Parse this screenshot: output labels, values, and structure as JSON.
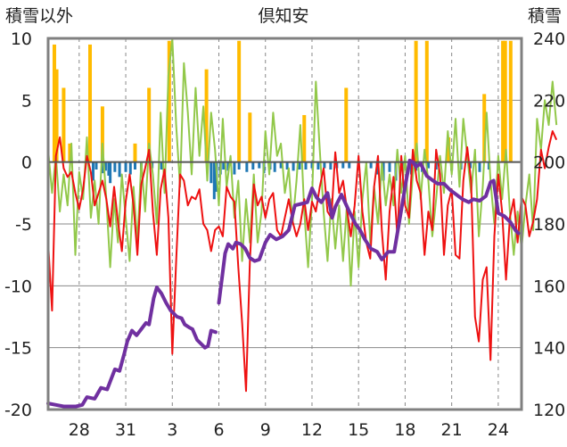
{
  "chart_data": {
    "type": "line",
    "title": "倶知安",
    "left_axis_label": "積雪以外",
    "right_axis_label": "積雪",
    "left_ylim": [
      -20,
      10
    ],
    "left_yticks": [
      10,
      5,
      0,
      -5,
      -10,
      -15,
      -20
    ],
    "right_ylim": [
      120,
      240
    ],
    "right_yticks": [
      240,
      220,
      200,
      180,
      160,
      140,
      120
    ],
    "x_tick_labels": [
      "28",
      "31",
      "3",
      "6",
      "9",
      "12",
      "15",
      "18",
      "21",
      "24"
    ],
    "x_tick_days": [
      2,
      5,
      8,
      11,
      14,
      17,
      20,
      23,
      26,
      29
    ],
    "x_range_days": [
      0,
      30.5
    ],
    "grid": {
      "horizontal": true,
      "vertical_dashed": true
    },
    "colors": {
      "temperature": "#ee1111",
      "wind": "#92c84a",
      "snowfall": "#ffbb00",
      "precip": "#1f77b4",
      "snow_depth": "#7030a0",
      "axis_frame": "#808080",
      "grid": "#888888"
    },
    "series_temperature": {
      "step_days": 0.25,
      "values": [
        -6.5,
        -12.0,
        0.5,
        2.0,
        -0.5,
        -1.2,
        -0.8,
        -2.5,
        -3.8,
        -2.2,
        0.5,
        -0.8,
        -3.5,
        -2.5,
        -1.5,
        -3.0,
        -5.2,
        -2.0,
        -4.8,
        -7.2,
        -3.2,
        -1.0,
        -3.5,
        -7.5,
        -1.8,
        -0.5,
        1.0,
        -4.0,
        -7.5,
        -2.2,
        -0.6,
        -4.5,
        -15.5,
        -8.0,
        -1.0,
        -1.5,
        -3.5,
        -2.8,
        -3.0,
        -2.2,
        -5.0,
        -5.5,
        -7.2,
        -5.5,
        -5.2,
        -6.0,
        -2.0,
        -2.8,
        -3.2,
        -8.5,
        -13.0,
        -18.5,
        -8.0,
        -1.8,
        -3.5,
        -2.8,
        -4.5,
        -3.0,
        -2.5,
        -5.5,
        -6.0,
        -4.5,
        -3.0,
        -4.8,
        -6.0,
        -5.0,
        -3.0,
        -5.5,
        -3.2,
        -4.0,
        -2.0,
        -0.5,
        -4.0,
        -4.5,
        0.8,
        -2.5,
        -1.5,
        -3.8,
        -6.0,
        -3.5,
        0.5,
        -4.0,
        -6.5,
        -7.8,
        -2.0,
        0.5,
        -5.5,
        -9.5,
        -4.0,
        -1.2,
        -6.0,
        0.5,
        -3.5,
        -4.5,
        1.0,
        -1.5,
        -2.5,
        -7.5,
        -4.0,
        -5.5,
        1.0,
        -1.0,
        -7.5,
        -3.5,
        -2.2,
        -7.5,
        -7.8,
        -1.5,
        1.2,
        -1.5,
        -12.5,
        -14.5,
        -9.5,
        -8.5,
        -16.0,
        -6.0,
        -1.0,
        -4.0,
        -9.5,
        -4.5,
        -3.0,
        -6.5,
        -2.8,
        -3.5,
        -6.0,
        -4.8,
        -3.0,
        1.0,
        -0.5,
        1.2,
        2.5,
        1.8
      ]
    },
    "series_wind": {
      "step_days": 0.25,
      "values": [
        1.0,
        -2.5,
        0.5,
        -4.0,
        -1.0,
        -3.5,
        1.5,
        -7.5,
        -0.8,
        -3.0,
        2.0,
        -4.5,
        -1.5,
        -5.0,
        1.5,
        -3.0,
        -8.5,
        -3.0,
        -6.5,
        -1.0,
        -4.5,
        -8.0,
        -2.0,
        -6.5,
        0.0,
        -4.0,
        1.5,
        -1.0,
        -5.0,
        4.0,
        -2.5,
        7.0,
        10.0,
        3.0,
        -2.0,
        8.0,
        4.0,
        -1.0,
        6.0,
        0.5,
        4.5,
        -1.5,
        4.0,
        1.0,
        -3.5,
        3.5,
        -2.0,
        0.5,
        -4.5,
        -1.5,
        -8.0,
        -3.0,
        -6.5,
        -1.0,
        -6.5,
        -4.0,
        2.5,
        -1.0,
        4.0,
        0.5,
        1.5,
        -2.5,
        -0.5,
        -5.0,
        -1.5,
        3.0,
        -4.0,
        -8.5,
        -3.0,
        6.5,
        1.0,
        -4.0,
        -8.0,
        -3.0,
        -7.0,
        -3.5,
        -8.0,
        -3.5,
        -10.0,
        -4.0,
        -8.5,
        -3.0,
        0.0,
        -6.5,
        -2.0,
        -5.0,
        0.0,
        -3.5,
        -1.0,
        -3.5,
        1.0,
        -2.5,
        0.5,
        -5.0,
        -1.0,
        1.5,
        -3.0,
        1.0,
        -1.5,
        -6.0,
        -3.0,
        0.5,
        -2.5,
        2.5,
        -1.0,
        3.5,
        -2.0,
        3.5,
        0.5,
        -2.5,
        1.0,
        -6.0,
        -2.0,
        4.0,
        -1.5,
        -5.0,
        0.5,
        -3.0,
        1.0,
        -4.0,
        -7.5,
        -4.0,
        -7.0,
        -3.5,
        -1.0,
        -5.5,
        3.5,
        1.0,
        5.0,
        3.0,
        6.5,
        3.0
      ]
    },
    "series_snowfall": [
      {
        "x": 0.4,
        "v": 9.5
      },
      {
        "x": 0.55,
        "v": 7.5
      },
      {
        "x": 1.0,
        "v": 6.0
      },
      {
        "x": 1.4,
        "v": 1.5
      },
      {
        "x": 2.7,
        "v": 9.5
      },
      {
        "x": 3.5,
        "v": 4.5
      },
      {
        "x": 5.6,
        "v": 1.5
      },
      {
        "x": 6.5,
        "v": 6.0
      },
      {
        "x": 7.8,
        "v": 9.8
      },
      {
        "x": 10.2,
        "v": 7.5
      },
      {
        "x": 12.3,
        "v": 9.8
      },
      {
        "x": 13.0,
        "v": 4.0
      },
      {
        "x": 16.5,
        "v": 3.8
      },
      {
        "x": 19.2,
        "v": 6.0
      },
      {
        "x": 23.7,
        "v": 9.8
      },
      {
        "x": 24.4,
        "v": 9.8
      },
      {
        "x": 25.8,
        "v": 2.0
      },
      {
        "x": 28.1,
        "v": 5.5
      },
      {
        "x": 29.3,
        "v": 9.8
      },
      {
        "x": 29.45,
        "v": 9.8
      },
      {
        "x": 29.8,
        "v": 9.8
      }
    ],
    "series_precip": [
      {
        "x": 2.9,
        "v": -1.5
      },
      {
        "x": 3.1,
        "v": -0.6
      },
      {
        "x": 3.5,
        "v": -0.9
      },
      {
        "x": 3.7,
        "v": -0.7
      },
      {
        "x": 3.9,
        "v": -1.1
      },
      {
        "x": 4.0,
        "v": -1.7
      },
      {
        "x": 4.3,
        "v": -0.8
      },
      {
        "x": 4.6,
        "v": -1.2
      },
      {
        "x": 5.0,
        "v": -0.8
      },
      {
        "x": 5.3,
        "v": -1.0
      },
      {
        "x": 5.6,
        "v": -0.6
      },
      {
        "x": 6.0,
        "v": -0.7
      },
      {
        "x": 6.7,
        "v": -0.5
      },
      {
        "x": 7.3,
        "v": -0.6
      },
      {
        "x": 10.5,
        "v": -1.7
      },
      {
        "x": 10.7,
        "v": -3.0
      },
      {
        "x": 10.85,
        "v": -2.4
      },
      {
        "x": 11.1,
        "v": -1.0
      },
      {
        "x": 11.3,
        "v": -0.6
      },
      {
        "x": 11.6,
        "v": -0.7
      },
      {
        "x": 12.0,
        "v": -1.0
      },
      {
        "x": 12.3,
        "v": -0.6
      },
      {
        "x": 12.8,
        "v": -0.8
      },
      {
        "x": 13.2,
        "v": -0.6
      },
      {
        "x": 13.6,
        "v": -0.5
      },
      {
        "x": 13.9,
        "v": -0.9
      },
      {
        "x": 14.3,
        "v": -0.6
      },
      {
        "x": 14.6,
        "v": -0.8
      },
      {
        "x": 15.0,
        "v": -0.5
      },
      {
        "x": 15.4,
        "v": -0.6
      },
      {
        "x": 15.8,
        "v": -0.7
      },
      {
        "x": 16.2,
        "v": -0.6
      },
      {
        "x": 16.6,
        "v": -0.6
      },
      {
        "x": 17.0,
        "v": -0.5
      },
      {
        "x": 17.4,
        "v": -0.6
      },
      {
        "x": 17.8,
        "v": -0.5
      },
      {
        "x": 18.2,
        "v": -0.6
      },
      {
        "x": 18.6,
        "v": -0.5
      },
      {
        "x": 19.0,
        "v": -0.5
      },
      {
        "x": 19.4,
        "v": -0.5
      },
      {
        "x": 20.8,
        "v": -0.5
      },
      {
        "x": 21.2,
        "v": -1.0
      },
      {
        "x": 21.6,
        "v": -1.5
      },
      {
        "x": 22.0,
        "v": -0.8
      },
      {
        "x": 22.4,
        "v": -1.5
      },
      {
        "x": 22.8,
        "v": -0.7
      },
      {
        "x": 23.4,
        "v": -1.0
      },
      {
        "x": 23.7,
        "v": -0.7
      },
      {
        "x": 24.1,
        "v": -0.8
      },
      {
        "x": 24.5,
        "v": -0.5
      },
      {
        "x": 25.0,
        "v": -0.6
      },
      {
        "x": 26.0,
        "v": -0.7
      },
      {
        "x": 26.6,
        "v": -0.6
      },
      {
        "x": 27.2,
        "v": -0.5
      },
      {
        "x": 27.8,
        "v": -0.8
      },
      {
        "x": 28.4,
        "v": -0.6
      },
      {
        "x": 29.0,
        "v": -0.5
      }
    ],
    "series_snow_depth": {
      "segments": [
        [
          [
            0.0,
            122.0
          ],
          [
            0.5,
            121.5
          ],
          [
            1.0,
            121.0
          ],
          [
            1.8,
            121.0
          ],
          [
            2.2,
            121.5
          ],
          [
            2.5,
            124.0
          ],
          [
            3.0,
            123.5
          ],
          [
            3.4,
            127.0
          ],
          [
            3.8,
            126.5
          ],
          [
            4.3,
            133.0
          ],
          [
            4.6,
            132.5
          ],
          [
            4.9,
            138.0
          ],
          [
            5.1,
            142.0
          ],
          [
            5.4,
            145.5
          ],
          [
            5.7,
            144.0
          ],
          [
            6.0,
            146.0
          ],
          [
            6.3,
            148.0
          ],
          [
            6.5,
            147.5
          ],
          [
            6.8,
            156.0
          ],
          [
            7.0,
            159.5
          ],
          [
            7.3,
            157.5
          ],
          [
            7.6,
            154.5
          ],
          [
            7.9,
            152.0
          ],
          [
            8.1,
            151.0
          ],
          [
            8.3,
            150.0
          ],
          [
            8.6,
            149.5
          ],
          [
            8.8,
            147.5
          ],
          [
            9.1,
            146.5
          ],
          [
            9.3,
            146.0
          ],
          [
            9.6,
            142.5
          ],
          [
            9.9,
            141.0
          ],
          [
            10.1,
            140.0
          ],
          [
            10.3,
            140.5
          ],
          [
            10.5,
            145.5
          ],
          [
            10.8,
            145.0
          ]
        ],
        [
          [
            11.0,
            154.5
          ],
          [
            11.2,
            162.5
          ],
          [
            11.4,
            170.5
          ],
          [
            11.6,
            173.5
          ],
          [
            11.9,
            172.0
          ],
          [
            12.1,
            174.0
          ],
          [
            12.4,
            173.5
          ],
          [
            12.7,
            172.0
          ],
          [
            13.0,
            169.0
          ],
          [
            13.3,
            168.0
          ],
          [
            13.6,
            168.5
          ],
          [
            14.0,
            174.0
          ],
          [
            14.3,
            176.5
          ],
          [
            14.7,
            175.0
          ],
          [
            15.1,
            176.0
          ],
          [
            15.5,
            178.0
          ],
          [
            15.9,
            186.0
          ],
          [
            16.3,
            186.5
          ],
          [
            16.7,
            187.0
          ],
          [
            17.0,
            191.5
          ],
          [
            17.3,
            188.5
          ],
          [
            17.6,
            187.0
          ],
          [
            18.0,
            190.0
          ],
          [
            18.3,
            182.0
          ],
          [
            18.5,
            185.5
          ],
          [
            18.9,
            189.5
          ],
          [
            19.4,
            184.0
          ],
          [
            19.8,
            180.0
          ],
          [
            20.1,
            178.0
          ],
          [
            20.4,
            175.0
          ],
          [
            20.8,
            172.0
          ],
          [
            21.2,
            171.0
          ],
          [
            21.5,
            168.5
          ],
          [
            21.9,
            171.0
          ],
          [
            22.3,
            171.0
          ],
          [
            22.6,
            180.0
          ],
          [
            22.9,
            189.0
          ],
          [
            23.1,
            195.0
          ],
          [
            23.3,
            200.5
          ],
          [
            23.5,
            200.0
          ],
          [
            23.7,
            198.5
          ],
          [
            24.0,
            199.5
          ],
          [
            24.4,
            195.5
          ],
          [
            24.8,
            194.0
          ],
          [
            25.1,
            193.0
          ],
          [
            25.5,
            193.0
          ],
          [
            25.9,
            191.0
          ],
          [
            26.3,
            189.5
          ],
          [
            26.7,
            188.0
          ],
          [
            27.1,
            187.0
          ],
          [
            27.4,
            188.0
          ],
          [
            27.8,
            187.5
          ],
          [
            28.2,
            189.0
          ],
          [
            28.5,
            193.5
          ],
          [
            28.7,
            194.0
          ],
          [
            29.0,
            183.5
          ],
          [
            29.4,
            182.5
          ],
          [
            29.8,
            180.5
          ],
          [
            30.1,
            178.0
          ],
          [
            30.3,
            177.0
          ]
        ]
      ]
    }
  }
}
